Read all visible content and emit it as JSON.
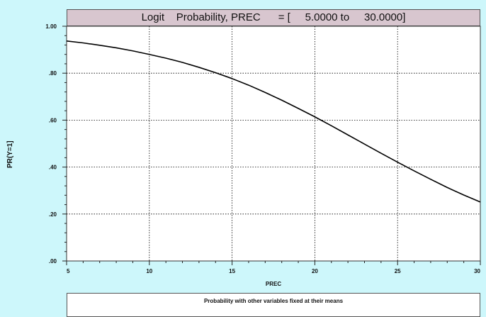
{
  "chart_data": {
    "type": "line",
    "title": "Logit    Probability, PREC      = [     5.0000 to     30.0000]",
    "xlabel": "PREC",
    "ylabel": "PR(Y=1]",
    "footer": "Probability with other variables fixed at their means",
    "xlim": [
      5,
      30
    ],
    "ylim": [
      0,
      1
    ],
    "x_ticks": [
      5,
      10,
      15,
      20,
      25,
      30
    ],
    "x_tick_labels": [
      "5",
      "10",
      "15",
      "20",
      "25",
      "30"
    ],
    "y_ticks": [
      0,
      0.2,
      0.4,
      0.6,
      0.8,
      1.0
    ],
    "y_tick_labels": [
      ".00",
      ".20",
      ".40",
      ".60",
      ".80",
      "1.00"
    ],
    "grid": true,
    "series": [
      {
        "x": [
          5,
          6,
          7,
          8,
          9,
          10,
          11,
          12,
          13,
          14,
          15,
          16,
          17,
          18,
          19,
          20,
          21,
          22,
          23,
          24,
          25,
          26,
          27,
          28,
          29,
          30
        ],
        "values": [
          0.937,
          0.929,
          0.919,
          0.908,
          0.895,
          0.88,
          0.864,
          0.846,
          0.825,
          0.802,
          0.777,
          0.749,
          0.718,
          0.685,
          0.65,
          0.614,
          0.576,
          0.537,
          0.498,
          0.459,
          0.421,
          0.384,
          0.348,
          0.313,
          0.281,
          0.251
        ]
      }
    ],
    "colors": {
      "line": "#000000",
      "grid": "#000000",
      "plot_background": "#ffffff",
      "page_background": "#cdf7fb",
      "title_background": "#d8c6cf"
    }
  }
}
